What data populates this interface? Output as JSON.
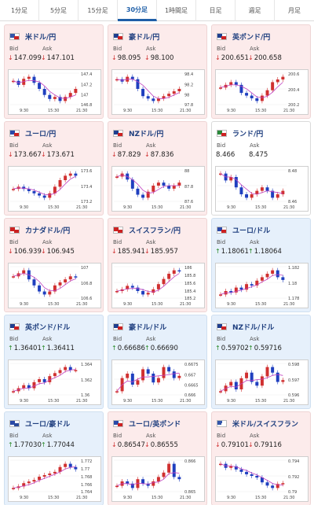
{
  "tabs": [
    {
      "label": "1分足",
      "active": false
    },
    {
      "label": "5分足",
      "active": false
    },
    {
      "label": "15分足",
      "active": false
    },
    {
      "label": "30分足",
      "active": true
    },
    {
      "label": "1時間足",
      "active": false
    },
    {
      "label": "日足",
      "active": false
    },
    {
      "label": "週足",
      "active": false
    },
    {
      "label": "月足",
      "active": false
    }
  ],
  "colors": {
    "down_bg": "#fcebeb",
    "up_bg": "#e6f0fb",
    "flat_bg": "#ffffff",
    "title": "#1f3f7f",
    "accent": "#1f5fa8",
    "candle_up": "#d03030",
    "candle_down": "#1f3fbf",
    "ma_line": "#c040c0"
  },
  "cards": [
    {
      "title": "米ドル/円",
      "flag": "US-JP",
      "trend": "down",
      "bid_label": "Bid",
      "ask_label": "Ask",
      "bid_arrow": "↓",
      "bid": "147.099",
      "ask_arrow": "↓",
      "ask": "147.101",
      "ticks": [
        "147.4",
        "147.2",
        "147",
        "146.8"
      ],
      "times": [
        "9:30",
        "15:30",
        "21:30"
      ],
      "series": [
        147.3,
        147.2,
        147.35,
        147.4,
        147.25,
        147.1,
        146.95,
        146.85,
        146.9,
        146.8,
        146.9,
        147.0,
        147.1
      ]
    },
    {
      "title": "豪ドル/円",
      "flag": "AU-JP",
      "trend": "down",
      "bid_label": "Bid",
      "ask_label": "Ask",
      "bid_arrow": "↓",
      "bid": "98.095",
      "ask_arrow": "↓",
      "ask": "98.100",
      "ticks": [
        "98.4",
        "98.2",
        "98",
        "97.8"
      ],
      "times": [
        "9:30",
        "15:30",
        "21:30"
      ],
      "series": [
        98.3,
        98.25,
        98.35,
        98.3,
        98.1,
        97.95,
        97.9,
        97.85,
        97.9,
        97.95,
        98.0,
        98.05,
        98.1
      ]
    },
    {
      "title": "英ポンド/円",
      "flag": "GB-JP",
      "trend": "down",
      "bid_label": "Bid",
      "ask_label": "Ask",
      "bid_arrow": "↓",
      "bid": "200.651",
      "ask_arrow": "↓",
      "ask": "200.658",
      "ticks": [
        "200.6",
        "200.4",
        "200.2"
      ],
      "times": [
        "9:30",
        "15:30",
        "21:30"
      ],
      "series": [
        200.45,
        200.5,
        200.55,
        200.5,
        200.35,
        200.3,
        200.25,
        200.2,
        200.3,
        200.4,
        200.55,
        200.6,
        200.65
      ]
    },
    {
      "title": "ユーロ/円",
      "flag": "EU-JP",
      "trend": "down",
      "bid_label": "Bid",
      "ask_label": "Ask",
      "bid_arrow": "↓",
      "bid": "173.667",
      "ask_arrow": "↓",
      "ask": "173.671",
      "ticks": [
        "173.6",
        "173.4",
        "173.2"
      ],
      "times": [
        "9:30",
        "15:30",
        "21:30"
      ],
      "series": [
        173.3,
        173.35,
        173.3,
        173.25,
        173.2,
        173.15,
        173.1,
        173.2,
        173.35,
        173.5,
        173.6,
        173.65,
        173.6
      ]
    },
    {
      "title": "NZドル/円",
      "flag": "NZ-JP",
      "trend": "down",
      "bid_label": "Bid",
      "ask_label": "Ask",
      "bid_arrow": "↓",
      "bid": "87.829",
      "ask_arrow": "↓",
      "ask": "87.836",
      "ticks": [
        "88",
        "87.8",
        "87.6"
      ],
      "times": [
        "9:30",
        "15:30",
        "21:30"
      ],
      "series": [
        87.95,
        88.0,
        87.9,
        87.75,
        87.65,
        87.6,
        87.7,
        87.8,
        87.85,
        87.8,
        87.75,
        87.8,
        87.85
      ]
    },
    {
      "title": "ランド/円",
      "flag": "ZA-JP",
      "trend": "flat",
      "bid_label": "Bid",
      "ask_label": "Ask",
      "bid_arrow": "",
      "bid": "8.466",
      "ask_arrow": "",
      "ask": "8.475",
      "ticks": [
        "8.48",
        "8.46"
      ],
      "times": [
        "9:30",
        "15:30",
        "21:30"
      ],
      "series": [
        8.49,
        8.48,
        8.485,
        8.47,
        8.46,
        8.455,
        8.46,
        8.465,
        8.47,
        8.465,
        8.455,
        8.46,
        8.465
      ]
    },
    {
      "title": "カナダドル/円",
      "flag": "CA-JP",
      "trend": "down",
      "bid_label": "Bid",
      "ask_label": "Ask",
      "bid_arrow": "↓",
      "bid": "106.939",
      "ask_arrow": "↓",
      "ask": "106.945",
      "ticks": [
        "107",
        "106.8",
        "106.6"
      ],
      "times": [
        "9:30",
        "15:30",
        "21:30"
      ],
      "series": [
        106.95,
        107.0,
        107.05,
        106.9,
        106.8,
        106.7,
        106.65,
        106.7,
        106.8,
        106.85,
        106.9,
        106.95,
        106.94
      ]
    },
    {
      "title": "スイスフラン/円",
      "flag": "CH-JP",
      "trend": "down",
      "bid_label": "Bid",
      "ask_label": "Ask",
      "bid_arrow": "↓",
      "bid": "185.941",
      "ask_arrow": "↓",
      "ask": "185.957",
      "ticks": [
        "186",
        "185.8",
        "185.6",
        "185.4",
        "185.2"
      ],
      "times": [
        "9:30",
        "15:30",
        "21:30"
      ],
      "series": [
        185.35,
        185.4,
        185.5,
        185.45,
        185.35,
        185.25,
        185.3,
        185.4,
        185.55,
        185.7,
        185.85,
        185.95,
        185.94
      ]
    },
    {
      "title": "ユーロ/ドル",
      "flag": "EU-US",
      "trend": "up",
      "bid_label": "Bid",
      "ask_label": "Ask",
      "bid_arrow": "↑",
      "bid": "1.18061",
      "ask_arrow": "↑",
      "ask": "1.18064",
      "ticks": [
        "1.182",
        "1.18",
        "1.178"
      ],
      "times": [
        "9:30",
        "15:30",
        "21:30"
      ],
      "series": [
        1.1785,
        1.179,
        1.1788,
        1.1795,
        1.1792,
        1.18,
        1.1798,
        1.1805,
        1.181,
        1.1815,
        1.182,
        1.181,
        1.1806
      ]
    },
    {
      "title": "英ポンド/ドル",
      "flag": "GB-US",
      "trend": "up",
      "bid_label": "Bid",
      "ask_label": "Ask",
      "bid_arrow": "↑",
      "bid": "1.36401",
      "ask_arrow": "↑",
      "ask": "1.36411",
      "ticks": [
        "1.364",
        "1.362",
        "1.36"
      ],
      "times": [
        "9:30",
        "15:30",
        "21:30"
      ],
      "series": [
        1.3605,
        1.361,
        1.3615,
        1.361,
        1.362,
        1.3625,
        1.362,
        1.363,
        1.3635,
        1.364,
        1.3645,
        1.364,
        1.364
      ]
    },
    {
      "title": "豪ドル/ドル",
      "flag": "AU-US",
      "trend": "up",
      "bid_label": "Bid",
      "ask_label": "Ask",
      "bid_arrow": "↑",
      "bid": "0.66686",
      "ask_arrow": "↑",
      "ask": "0.66690",
      "ticks": [
        "0.6675",
        "0.667",
        "0.6665",
        "0.666"
      ],
      "times": [
        "9:30",
        "15:30",
        "21:30"
      ],
      "series": [
        0.6662,
        0.6668,
        0.667,
        0.6665,
        0.6667,
        0.6672,
        0.667,
        0.6666,
        0.6668,
        0.6673,
        0.6671,
        0.6668,
        0.6669
      ]
    },
    {
      "title": "NZドル/ドル",
      "flag": "NZ-US",
      "trend": "up",
      "bid_label": "Bid",
      "ask_label": "Ask",
      "bid_arrow": "↑",
      "bid": "0.59702",
      "ask_arrow": "↑",
      "ask": "0.59716",
      "ticks": [
        "0.598",
        "0.597",
        "0.596"
      ],
      "times": [
        "9:30",
        "15:30",
        "21:30"
      ],
      "series": [
        0.5965,
        0.5968,
        0.597,
        0.5966,
        0.5972,
        0.5975,
        0.597,
        0.5968,
        0.5973,
        0.5978,
        0.5975,
        0.597,
        0.5971
      ]
    },
    {
      "title": "ユーロ/豪ドル",
      "flag": "EU-AU",
      "trend": "up",
      "bid_label": "Bid",
      "ask_label": "Ask",
      "bid_arrow": "↑",
      "bid": "1.77030",
      "ask_arrow": "↑",
      "ask": "1.77044",
      "ticks": [
        "1.772",
        "1.77",
        "1.768",
        "1.766",
        "1.764"
      ],
      "times": [
        "9:30",
        "15:30",
        "21:30"
      ],
      "series": [
        1.7645,
        1.765,
        1.766,
        1.7665,
        1.767,
        1.768,
        1.7685,
        1.769,
        1.7695,
        1.771,
        1.772,
        1.771,
        1.7703
      ]
    },
    {
      "title": "ユーロ/英ポンド",
      "flag": "EU-GB",
      "trend": "down",
      "bid_label": "Bid",
      "ask_label": "Ask",
      "bid_arrow": "↓",
      "bid": "0.86547",
      "ask_arrow": "↓",
      "ask": "0.86555",
      "ticks": [
        "0.866",
        "0.865"
      ],
      "times": [
        "9:30",
        "15:30",
        "21:30"
      ],
      "series": [
        0.8652,
        0.8654,
        0.8653,
        0.8651,
        0.8655,
        0.8653,
        0.8652,
        0.8654,
        0.8656,
        0.8658,
        0.8662,
        0.8656,
        0.8655
      ]
    },
    {
      "title": "米ドル/スイスフラン",
      "flag": "US-CH",
      "trend": "down",
      "bid_label": "Bid",
      "ask_label": "Ask",
      "bid_arrow": "↓",
      "bid": "0.79101",
      "ask_arrow": "↓",
      "ask": "0.79116",
      "ticks": [
        "0.794",
        "0.792",
        "0.79"
      ],
      "times": [
        "9:30",
        "15:30",
        "21:30"
      ],
      "series": [
        0.7935,
        0.793,
        0.7932,
        0.7928,
        0.7925,
        0.7922,
        0.792,
        0.7918,
        0.7912,
        0.7908,
        0.7905,
        0.791,
        0.7911
      ]
    }
  ]
}
